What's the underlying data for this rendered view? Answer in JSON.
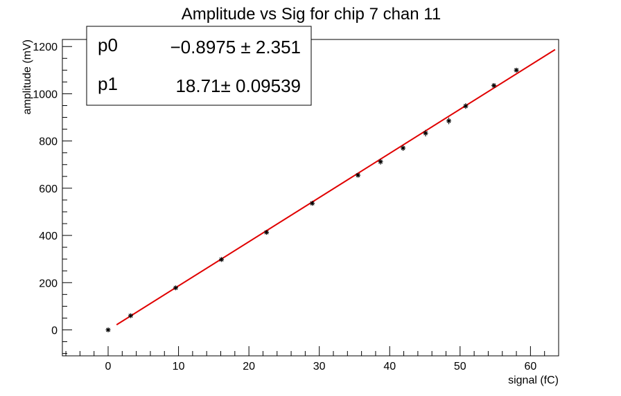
{
  "chart_data": {
    "type": "scatter",
    "title": "Amplitude vs Sig for chip 7 chan 11",
    "xlabel": "signal (fC)",
    "ylabel": "amplitude (mV)",
    "xlim": [
      -6.5,
      64
    ],
    "ylim": [
      -110,
      1230
    ],
    "x_ticks": [
      0,
      10,
      20,
      30,
      40,
      50,
      60
    ],
    "y_ticks": [
      0,
      200,
      400,
      600,
      800,
      1000,
      1200
    ],
    "grid": false,
    "series": [
      {
        "marker": "star",
        "color": "#000000",
        "x": [
          0,
          3.2,
          9.6,
          16.1,
          22.5,
          29.0,
          35.5,
          38.7,
          41.9,
          45.1,
          48.4,
          50.8,
          54.8,
          58.0
        ],
        "y": [
          0,
          60,
          178,
          298,
          413,
          536,
          655,
          712,
          770,
          833,
          885,
          948,
          1035,
          1100
        ],
        "y_err": [
          4,
          6,
          6,
          6,
          8,
          8,
          8,
          12,
          12,
          14,
          14,
          12,
          8,
          8
        ]
      }
    ],
    "fit": {
      "color": "#e00000",
      "x_range": [
        1.2,
        63.5
      ],
      "p0": -0.8975,
      "p1": 18.71
    },
    "stats_box": {
      "placement": "top-left",
      "rows": [
        {
          "name": "p0",
          "value": "−0.8975 ± 2.351"
        },
        {
          "name": "p1",
          "value": "18.71± 0.09539"
        }
      ]
    }
  }
}
